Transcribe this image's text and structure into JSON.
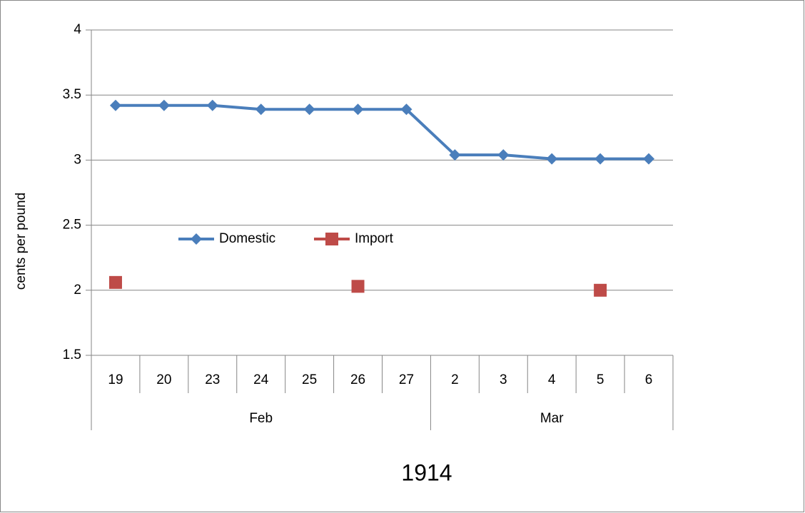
{
  "chart_data": {
    "type": "line",
    "x_label": "1914",
    "y_label": "cents per pound",
    "categories": [
      [
        "Feb",
        "19"
      ],
      [
        "Feb",
        "20"
      ],
      [
        "Feb",
        "23"
      ],
      [
        "Feb",
        "24"
      ],
      [
        "Feb",
        "25"
      ],
      [
        "Feb",
        "26"
      ],
      [
        "Feb",
        "27"
      ],
      [
        "Mar",
        "2"
      ],
      [
        "Mar",
        "3"
      ],
      [
        "Mar",
        "4"
      ],
      [
        "Mar",
        "5"
      ],
      [
        "Mar",
        "6"
      ]
    ],
    "series": [
      {
        "name": "Domestic",
        "color": "#4a7ebb",
        "marker": "diamond",
        "values": [
          3.42,
          3.42,
          3.42,
          3.39,
          3.39,
          3.39,
          3.39,
          3.04,
          3.04,
          3.01,
          3.01,
          3.01
        ]
      },
      {
        "name": "Import",
        "color": "#be4b48",
        "marker": "square",
        "values": [
          2.06,
          null,
          null,
          null,
          null,
          2.03,
          null,
          null,
          null,
          null,
          2.0,
          null
        ]
      }
    ],
    "ylim": [
      1.5,
      4
    ],
    "yticks": [
      1.5,
      2,
      2.5,
      3,
      3.5,
      4
    ],
    "grid": true
  }
}
